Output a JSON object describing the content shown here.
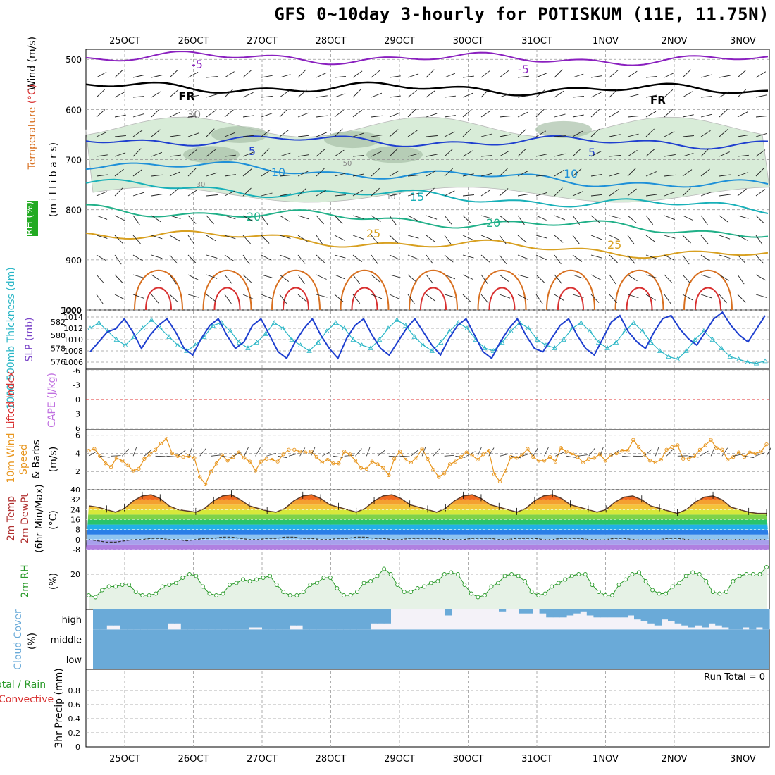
{
  "title": "GFS 0~10day 3-hourly for POTISKUM (11E, 11.75N)",
  "colors": {
    "grid": "#999999",
    "frame": "#000000",
    "temp_5": "#8a1fbf",
    "temp_fr": "#000000",
    "temp_minus5": "#1f3fcf",
    "temp_10": "#1e90d8",
    "temp_15": "#18b0b8",
    "temp_20": "#20b088",
    "temp_25": "#d8a020",
    "temp_30": "#d87020",
    "temp_35": "#d83030",
    "rh": "#d8ecd8",
    "rh_dark": "#a8c0a8",
    "thickness": "#1e3fcf",
    "slp": "#29b6c6",
    "wind": "#e8961e",
    "rh2m": "#2a9a2a",
    "cloud": "#6aaad8",
    "red_dash": "#e03030"
  },
  "chart_data": [
    {
      "type": "line",
      "panel": "upper-air",
      "xlabel": "",
      "x_tick_labels": [
        "25OCT",
        "26OCT",
        "27OCT",
        "28OCT",
        "29OCT",
        "30OCT",
        "31OCT",
        "1NOV",
        "2NOV",
        "3NOV"
      ],
      "ylabel": "(millibars)",
      "ylabel_parts": [
        "RH (%)",
        "Temperature (°C)",
        "Wind (m/s)"
      ],
      "ylabel_text": "(m i l l i b a r s)",
      "rh_legend": "RH (%)",
      "yticks": [
        500,
        600,
        700,
        800,
        900,
        1000
      ],
      "ylim": [
        480,
        1000
      ],
      "contour_labels": [
        "-5",
        "FR",
        "5",
        "10",
        "15",
        "20",
        "25",
        "30",
        "10",
        "30",
        "50"
      ],
      "series": [
        {
          "name": "-5",
          "pressure": 495
        },
        {
          "name": "FR",
          "pressure": 555
        },
        {
          "name": "5",
          "pressure": 660
        },
        {
          "name": "10",
          "pressure": 707
        },
        {
          "name": "15",
          "pressure": 750
        },
        {
          "name": "20",
          "pressure": 798
        },
        {
          "name": "25",
          "pressure": 845
        }
      ]
    },
    {
      "type": "line",
      "panel": "thickness-slp",
      "ylabel_left": "1000-500mb Thickness (dm)",
      "ylabel_right": "SLP (mb)",
      "y_left_ticks": [
        "576",
        "578",
        "580",
        "582"
      ],
      "y_right_ticks": [
        "1006",
        "1008",
        "1010",
        "1012",
        "1014"
      ],
      "y_left_top_label": "1000",
      "series": [
        {
          "name": "thickness",
          "values": [
            577.5,
            579,
            580.5,
            581,
            582.5,
            580.5,
            578,
            580,
            581.5,
            582.5,
            580.5,
            578,
            577,
            579.5,
            581.5,
            582.5,
            580,
            578,
            579,
            581.5,
            582.5,
            580,
            577.5,
            576.5,
            579,
            581,
            582.5,
            580,
            578,
            576.5,
            579.5,
            581.5,
            582.5,
            580,
            578,
            577,
            579,
            581,
            582.5,
            580.5,
            578.5,
            577,
            579.5,
            581.5,
            582.5,
            580,
            577.5,
            576.5,
            579,
            581,
            582.5,
            580,
            578,
            577.5,
            579.5,
            581.5,
            582.5,
            580,
            578,
            577,
            579.5,
            582,
            583,
            580.5,
            579,
            578,
            580.5,
            582.5,
            583,
            581,
            579.5,
            578.5,
            580.5,
            582.5,
            583.5,
            581.5,
            580,
            579,
            581,
            583
          ]
        },
        {
          "name": "slp",
          "values": [
            1012,
            1013,
            1011.5,
            1010,
            1009,
            1010.5,
            1012,
            1013.5,
            1012,
            1010.5,
            1009,
            1008,
            1009,
            1010.5,
            1012.5,
            1013,
            1011.5,
            1009.5,
            1008.5,
            1009.5,
            1011,
            1013,
            1012,
            1010,
            1009,
            1008,
            1009.5,
            1011.5,
            1013,
            1012,
            1010,
            1009,
            1008.5,
            1010,
            1012,
            1013.5,
            1012.5,
            1010.5,
            1009,
            1008,
            1009.5,
            1011.5,
            1013,
            1012,
            1010,
            1008.5,
            1008,
            1009.5,
            1011.5,
            1013,
            1012,
            1010,
            1009,
            1008.5,
            1010,
            1012,
            1013,
            1011.5,
            1009.5,
            1008.5,
            1009.5,
            1011.5,
            1013,
            1011.5,
            1009.5,
            1008,
            1007,
            1006.5,
            1008,
            1010,
            1011.5,
            1010,
            1008.5,
            1007,
            1006.5,
            1006,
            1005.8,
            1006.2
          ]
        }
      ]
    },
    {
      "type": "line",
      "panel": "lifted-index-cape",
      "ylabel_left": "Lifted Index",
      "ylabel_right": "CAPE (J/kg)",
      "y_ticks": [
        "-6",
        "-3",
        "0",
        "3",
        "6"
      ],
      "values": []
    },
    {
      "type": "line",
      "panel": "10m-wind",
      "ylabel": "10m Wind Speed & Barbs (m/s)",
      "ylabel_a": "10m Wind",
      "ylabel_b": "Speed",
      "ylabel_c": "& Barbs",
      "ylabel_unit": "(m/s)",
      "y_ticks": [
        "2",
        "4",
        "6"
      ],
      "ylim": [
        0,
        6.6
      ],
      "values": [
        4.3,
        4.5,
        3.7,
        2.9,
        2.5,
        3.5,
        3.2,
        2.7,
        2.1,
        2.3,
        3.4,
        3.9,
        4.4,
        5.1,
        5.6,
        4.0,
        3.7,
        3.6,
        3.7,
        3.5,
        1.4,
        0.6,
        2.0,
        2.9,
        3.8,
        3.2,
        3.6,
        4.1,
        3.5,
        3.1,
        2.1,
        3.1,
        3.4,
        3.3,
        3.1,
        3.9,
        4.4,
        4.4,
        4.2,
        4.1,
        4.2,
        3.6,
        3.0,
        3.3,
        2.9,
        2.9,
        4.2,
        3.9,
        3.2,
        2.4,
        2.3,
        3.1,
        2.8,
        2.4,
        1.6,
        3.4,
        4.2,
        3.3,
        3.0,
        3.5,
        4.5,
        3.4,
        2.2,
        1.4,
        1.8,
        2.8,
        3.1,
        3.6,
        4.1,
        3.8,
        3.3,
        3.9,
        4.3,
        1.7,
        0.9,
        2.1,
        3.6,
        3.5,
        3.8,
        4.5,
        3.6,
        3.2,
        3.2,
        3.6,
        3.1,
        4.6,
        4.2,
        4.0,
        3.6,
        3.0,
        3.4,
        3.5,
        3.9,
        3.2,
        3.8,
        4.0,
        4.3,
        4.3,
        5.5,
        4.7,
        3.9,
        3.2,
        3.0,
        3.3,
        4.4,
        4.7,
        4.9,
        3.4,
        3.4,
        3.7,
        4.4,
        4.9,
        5.5,
        4.6,
        4.4,
        3.3,
        3.6,
        4.1,
        3.6,
        4.1,
        4.0,
        4.2,
        5.0
      ]
    },
    {
      "type": "area",
      "panel": "2m-temp",
      "ylabel": "2m Temp 2m DewPt (6hr Min/Max) (°C)",
      "ylabel_a": "2m Temp",
      "ylabel_b": "2m DewPt",
      "ylabel_c": "(6hr Min/Max)",
      "ylabel_unit": "(°C)",
      "y_ticks": [
        "-8",
        "0",
        "8",
        "16",
        "24",
        "32",
        "40"
      ],
      "ylim": [
        -8,
        40
      ],
      "temp": [
        27,
        26,
        24,
        22,
        25,
        31,
        35,
        36,
        33,
        27,
        24,
        23,
        22,
        25,
        31,
        35,
        36,
        32,
        27,
        25,
        23,
        22,
        25,
        31,
        35,
        36,
        33,
        28,
        26,
        24,
        22,
        25,
        31,
        35,
        36,
        33,
        28,
        26,
        24,
        22,
        25,
        31,
        35,
        36,
        33,
        28,
        26,
        24,
        22,
        25,
        31,
        35,
        36,
        33,
        28,
        26,
        24,
        22,
        24,
        30,
        34,
        35,
        32,
        27,
        25,
        23,
        21,
        24,
        30,
        34,
        35,
        32,
        26,
        24,
        22,
        21,
        21
      ],
      "dewpt": [
        0,
        -1,
        -2,
        -2,
        -1,
        0,
        0,
        1,
        1,
        0,
        0,
        -1,
        0,
        1,
        1,
        2,
        2,
        1,
        0,
        0,
        1,
        1,
        2,
        2,
        1,
        1,
        0,
        0,
        1,
        1,
        2,
        2,
        1,
        1,
        0,
        0,
        1,
        1,
        1,
        1,
        0,
        0,
        0,
        1,
        1,
        1,
        0,
        0,
        1,
        1,
        1,
        0,
        0,
        1,
        1,
        1,
        0,
        0,
        0,
        1,
        1,
        0,
        0,
        0,
        0,
        1,
        1,
        0,
        0,
        0,
        0,
        0,
        0,
        0,
        0,
        0,
        0
      ]
    },
    {
      "type": "area",
      "panel": "2m-rh",
      "ylabel": "2m RH (%)",
      "ylabel_a": "2m RH",
      "ylabel_unit": "(%)",
      "y_ticks": [
        "20"
      ],
      "ylim": [
        0,
        30
      ],
      "values": [
        8,
        7,
        11,
        13,
        13,
        14,
        14,
        10,
        8,
        8,
        9,
        13,
        14,
        15,
        18,
        20,
        19,
        13,
        9,
        8,
        9,
        14,
        15,
        17,
        16,
        17,
        18,
        19,
        14,
        10,
        8,
        8,
        10,
        14,
        15,
        18,
        18,
        12,
        8,
        8,
        10,
        15,
        16,
        19,
        23,
        20,
        14,
        10,
        10,
        12,
        13,
        15,
        16,
        20,
        21,
        20,
        14,
        9,
        7,
        8,
        13,
        15,
        19,
        20,
        19,
        16,
        10,
        8,
        9,
        13,
        15,
        17,
        19,
        20,
        20,
        14,
        10,
        8,
        8,
        14,
        17,
        20,
        21,
        16,
        11,
        9,
        9,
        13,
        15,
        19,
        21,
        20,
        16,
        10,
        9,
        10,
        16,
        19,
        20,
        20,
        20,
        24
      ]
    },
    {
      "type": "bar",
      "panel": "cloud-cover",
      "ylabel": "Cloud Cover (%)",
      "ylabel_a": "Cloud Cover",
      "ylabel_unit": "(%)",
      "levels": [
        "high",
        "middle",
        "low"
      ],
      "high_values": [
        100,
        100,
        80,
        80,
        100,
        100,
        100,
        100,
        100,
        100,
        100,
        70,
        70,
        100,
        100,
        100,
        100,
        100,
        100,
        100,
        100,
        100,
        100,
        90,
        90,
        100,
        100,
        100,
        100,
        80,
        80,
        100,
        100,
        100,
        100,
        100,
        100,
        100,
        100,
        100,
        100,
        70,
        70,
        70,
        0,
        0,
        0,
        0,
        0,
        0,
        0,
        0,
        30,
        0,
        0,
        0,
        0,
        0,
        0,
        0,
        10,
        0,
        0,
        20,
        20,
        0,
        20,
        40,
        40,
        40,
        30,
        20,
        10,
        30,
        40,
        40,
        40,
        40,
        40,
        30,
        50,
        60,
        70,
        80,
        50,
        60,
        70,
        80,
        90,
        80,
        90,
        70,
        80,
        90,
        100,
        100,
        90,
        100,
        90,
        100
      ],
      "middle_values": [],
      "low_values": []
    },
    {
      "type": "bar",
      "panel": "precip",
      "ylabel": "3hr Precip (mm)",
      "legend_total": "Total",
      "legend_rain": "Rain",
      "legend_sep": " / ",
      "legend_convective": "Convective",
      "run_total": "Run Total = 0",
      "y_ticks": [
        "0",
        "0.2",
        "0.4",
        "0.6",
        "0.8"
      ],
      "ylim": [
        0,
        1
      ],
      "values": []
    }
  ]
}
